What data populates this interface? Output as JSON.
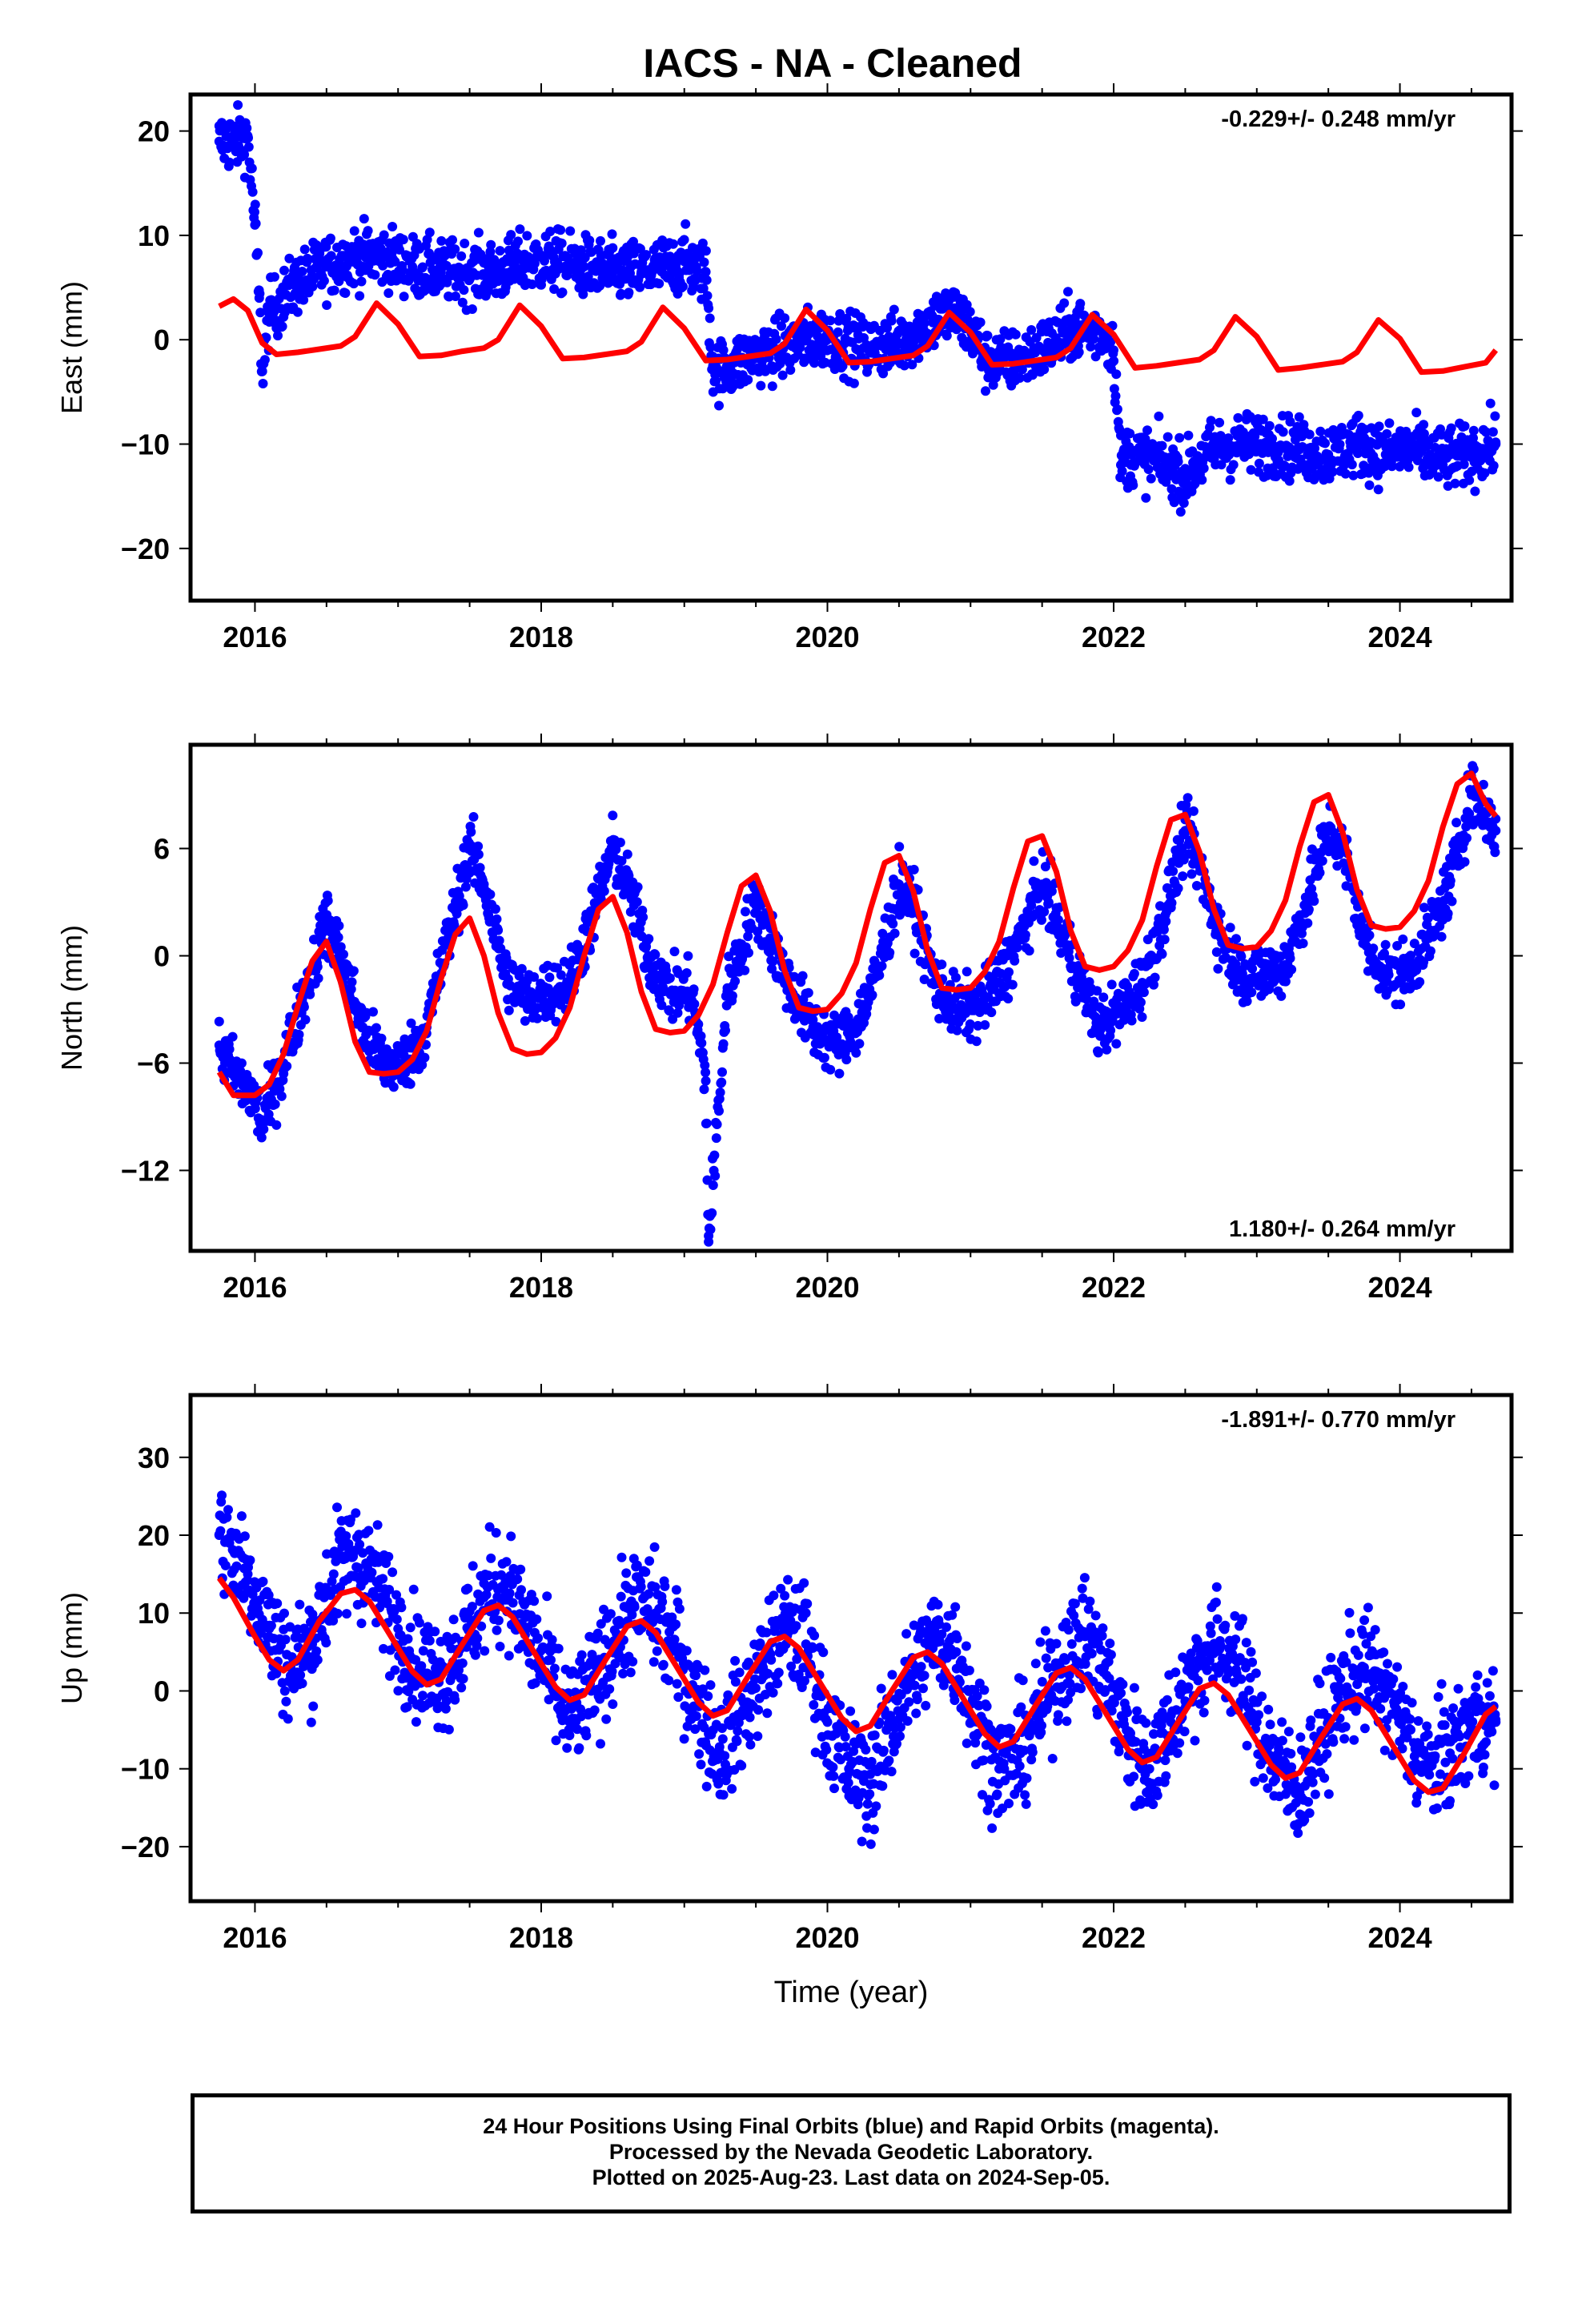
{
  "title": "IACS  - NA - Cleaned",
  "colors": {
    "final_orbits": "#0000ff",
    "model": "#ff0000",
    "frame": "#000000"
  },
  "chart_data": [
    {
      "type": "scatter",
      "ylabel": "East (mm)",
      "rate_label": "-0.229+/- 0.248 mm/yr",
      "xlim": [
        2015.55,
        2024.78
      ],
      "ylim": [
        -25,
        23.5
      ],
      "x_ticks": [
        2016,
        2018,
        2020,
        2022,
        2024
      ],
      "x_tick_labels": [
        "2016",
        "2018",
        "2020",
        "2022",
        "2024"
      ],
      "y_ticks": [
        -20,
        -10,
        0,
        10,
        20
      ],
      "y_tick_labels": [
        "−20",
        "−10",
        "0",
        "10",
        "20"
      ],
      "series": [
        {
          "role": "daily positions",
          "style": "points",
          "x": [
            2015.75,
            2015.85,
            2015.95,
            2016.0,
            2016.03,
            2016.05,
            2016.1,
            2016.3,
            2016.5,
            2016.7,
            2016.9,
            2017.1,
            2017.3,
            2017.5,
            2017.7,
            2017.9,
            2018.1,
            2018.3,
            2018.5,
            2018.7,
            2018.9,
            2019.0,
            2019.05,
            2019.15,
            2019.2,
            2019.25,
            2019.5,
            2019.75,
            2020.0,
            2020.25,
            2020.5,
            2020.75,
            2020.9,
            2021.05,
            2021.1,
            2021.3,
            2021.5,
            2021.7,
            2021.85,
            2021.95,
            2022.0,
            2022.05,
            2022.1,
            2022.3,
            2022.5,
            2022.7,
            2022.9,
            2023.1,
            2023.3,
            2023.5,
            2023.7,
            2023.9,
            2024.1,
            2024.3,
            2024.5,
            2024.67
          ],
          "y": [
            19,
            19,
            19.5,
            11,
            4,
            -3,
            2.5,
            5.5,
            7,
            8,
            8,
            7,
            6.5,
            6.5,
            6.5,
            7.5,
            7.5,
            7,
            6.5,
            6.5,
            7,
            7.5,
            7,
            6.5,
            -2.5,
            -3,
            -1.5,
            -0.5,
            0.3,
            -0.8,
            -0.3,
            2,
            2.5,
            0,
            -2,
            -2,
            -1,
            1,
            1,
            0.5,
            -1,
            -12,
            -11,
            -11.5,
            -13,
            -10.5,
            -10,
            -10,
            -10.5,
            -11,
            -10,
            -11,
            -10.5,
            -11.5,
            -11,
            -10
          ]
        },
        {
          "role": "seasonal model",
          "style": "line",
          "x": [
            2015.75,
            2015.85,
            2015.95,
            2016.05,
            2016.15,
            2016.3,
            2016.45,
            2016.6,
            2016.7,
            2016.85,
            2017.0,
            2017.15,
            2017.3,
            2017.45,
            2017.6,
            2017.7,
            2017.85,
            2018.0,
            2018.15,
            2018.3,
            2018.45,
            2018.6,
            2018.7,
            2018.85,
            2019.0,
            2019.15,
            2019.3,
            2019.45,
            2019.6,
            2019.7,
            2019.85,
            2020.0,
            2020.15,
            2020.3,
            2020.45,
            2020.6,
            2020.7,
            2020.85,
            2021.0,
            2021.15,
            2021.3,
            2021.45,
            2021.6,
            2021.7,
            2021.85,
            2022.0,
            2022.15,
            2022.3,
            2022.45,
            2022.6,
            2022.7,
            2022.85,
            2023.0,
            2023.15,
            2023.3,
            2023.45,
            2023.6,
            2023.7,
            2023.85,
            2024.0,
            2024.15,
            2024.3,
            2024.45,
            2024.6,
            2024.67
          ],
          "y": [
            3.2,
            3.9,
            2.8,
            -0.3,
            -1.4,
            -1.2,
            -0.9,
            -0.6,
            0.3,
            3.5,
            1.5,
            -1.6,
            -1.5,
            -1.1,
            -0.8,
            0,
            3.3,
            1.3,
            -1.8,
            -1.7,
            -1.4,
            -1.1,
            -0.2,
            3.1,
            1.1,
            -2.0,
            -1.9,
            -1.6,
            -1.3,
            -0.4,
            2.9,
            0.9,
            -2.2,
            -2.1,
            -1.8,
            -1.5,
            -0.6,
            2.6,
            0.7,
            -2.4,
            -2.3,
            -2.0,
            -1.7,
            -0.8,
            2.4,
            0.5,
            -2.7,
            -2.5,
            -2.2,
            -1.9,
            -1.0,
            2.2,
            0.3,
            -2.9,
            -2.7,
            -2.4,
            -2.1,
            -1.2,
            1.9,
            0.1,
            -3.1,
            -3.0,
            -2.6,
            -2.2,
            -1.0
          ]
        }
      ]
    },
    {
      "type": "scatter",
      "ylabel": "North (mm)",
      "rate_label": "1.180+/- 0.264 mm/yr",
      "xlim": [
        2015.55,
        2024.78
      ],
      "ylim": [
        -16.5,
        11.8
      ],
      "x_ticks": [
        2016,
        2018,
        2020,
        2022,
        2024
      ],
      "x_tick_labels": [
        "2016",
        "2018",
        "2020",
        "2022",
        "2024"
      ],
      "y_ticks": [
        -12,
        -6,
        0,
        6
      ],
      "y_tick_labels": [
        "−12",
        "−6",
        "0",
        "6"
      ],
      "series": [
        {
          "role": "daily positions",
          "style": "points",
          "x": [
            2015.75,
            2015.85,
            2016.0,
            2016.05,
            2016.2,
            2016.35,
            2016.5,
            2016.6,
            2016.75,
            2016.9,
            2017.05,
            2017.2,
            2017.35,
            2017.5,
            2017.6,
            2017.75,
            2017.9,
            2018.05,
            2018.2,
            2018.35,
            2018.5,
            2018.6,
            2018.75,
            2018.9,
            2019.05,
            2019.15,
            2019.17,
            2019.3,
            2019.5,
            2019.6,
            2019.75,
            2019.9,
            2020.05,
            2020.2,
            2020.35,
            2020.5,
            2020.6,
            2020.75,
            2020.9,
            2021.05,
            2021.2,
            2021.35,
            2021.5,
            2021.6,
            2021.75,
            2021.9,
            2022.05,
            2022.2,
            2022.35,
            2022.5,
            2022.6,
            2022.75,
            2022.9,
            2023.05,
            2023.2,
            2023.35,
            2023.5,
            2023.6,
            2023.75,
            2023.9,
            2024.05,
            2024.2,
            2024.35,
            2024.5,
            2024.6,
            2024.67
          ],
          "y": [
            -5,
            -6.5,
            -8,
            -9.5,
            -6,
            -2,
            2,
            0,
            -4,
            -6,
            -6,
            -4,
            1,
            6,
            4,
            -1,
            -2.5,
            -2,
            -1.5,
            2,
            6,
            4,
            0,
            -2,
            -2,
            -7,
            -16,
            -2,
            3,
            1,
            -2,
            -4,
            -5,
            -4,
            -1,
            4,
            3,
            -1.5,
            -3,
            -3,
            -1.5,
            1,
            4,
            2,
            -1,
            -4,
            -3,
            -1.5,
            2,
            7,
            5,
            1,
            -1,
            -1,
            -0.5,
            3,
            7,
            6,
            1,
            -1,
            -1,
            1,
            4,
            9,
            8,
            7
          ]
        },
        {
          "role": "seasonal model",
          "style": "line",
          "x": [
            2015.75,
            2015.85,
            2016.0,
            2016.1,
            2016.2,
            2016.3,
            2016.4,
            2016.5,
            2016.6,
            2016.7,
            2016.8,
            2016.9,
            2017.0,
            2017.1,
            2017.2,
            2017.3,
            2017.4,
            2017.5,
            2017.6,
            2017.7,
            2017.8,
            2017.9,
            2018.0,
            2018.1,
            2018.2,
            2018.3,
            2018.4,
            2018.5,
            2018.6,
            2018.7,
            2018.8,
            2018.9,
            2019.0,
            2019.1,
            2019.2,
            2019.3,
            2019.4,
            2019.5,
            2019.6,
            2019.7,
            2019.8,
            2019.9,
            2020.0,
            2020.1,
            2020.2,
            2020.3,
            2020.4,
            2020.5,
            2020.6,
            2020.7,
            2020.8,
            2020.9,
            2021.0,
            2021.1,
            2021.2,
            2021.3,
            2021.4,
            2021.5,
            2021.6,
            2021.7,
            2021.8,
            2021.9,
            2022.0,
            2022.1,
            2022.2,
            2022.3,
            2022.4,
            2022.5,
            2022.6,
            2022.7,
            2022.8,
            2022.9,
            2023.0,
            2023.1,
            2023.2,
            2023.3,
            2023.4,
            2023.5,
            2023.6,
            2023.7,
            2023.8,
            2023.9,
            2024.0,
            2024.1,
            2024.2,
            2024.3,
            2024.4,
            2024.5,
            2024.6,
            2024.67
          ],
          "y": [
            -6.5,
            -7.8,
            -7.8,
            -7.2,
            -5.5,
            -2.8,
            -0.3,
            0.8,
            -1.5,
            -4.8,
            -6.5,
            -6.6,
            -6.5,
            -5.8,
            -4.2,
            -1.3,
            1.2,
            2.1,
            0,
            -3.2,
            -5.2,
            -5.5,
            -5.4,
            -4.6,
            -2.9,
            0,
            2.6,
            3.3,
            1.3,
            -2,
            -4.1,
            -4.3,
            -4.2,
            -3.3,
            -1.6,
            1.3,
            3.9,
            4.5,
            2.5,
            -0.8,
            -2.9,
            -3.1,
            -3.0,
            -2.1,
            -0.4,
            2.6,
            5.2,
            5.6,
            3.6,
            0.3,
            -1.8,
            -1.9,
            -1.8,
            -0.9,
            0.8,
            3.8,
            6.4,
            6.7,
            4.7,
            1.4,
            -0.6,
            -0.8,
            -0.6,
            0.3,
            2,
            5,
            7.6,
            7.9,
            5.8,
            2.6,
            0.6,
            0.4,
            0.5,
            1.4,
            3.1,
            6.1,
            8.6,
            9.0,
            6.9,
            3.7,
            1.7,
            1.5,
            1.6,
            2.5,
            4.2,
            7.2,
            9.6,
            10.2,
            8.5,
            7.8
          ]
        }
      ]
    },
    {
      "type": "scatter",
      "ylabel": "Up (mm)",
      "rate_label": "-1.891+/- 0.770 mm/yr",
      "xlabel": "Time (year)",
      "xlim": [
        2015.55,
        2024.78
      ],
      "ylim": [
        -27,
        38
      ],
      "x_ticks": [
        2016,
        2018,
        2020,
        2022,
        2024
      ],
      "x_tick_labels": [
        "2016",
        "2018",
        "2020",
        "2022",
        "2024"
      ],
      "y_ticks": [
        -20,
        -10,
        0,
        10,
        20,
        30
      ],
      "y_tick_labels": [
        "−20",
        "−10",
        "0",
        "10",
        "20",
        "30"
      ],
      "series": [
        {
          "role": "daily positions",
          "style": "points",
          "x": [
            2015.75,
            2015.85,
            2015.95,
            2016.1,
            2016.25,
            2016.4,
            2016.55,
            2016.7,
            2016.85,
            2017.0,
            2017.15,
            2017.3,
            2017.45,
            2017.6,
            2017.75,
            2017.9,
            2018.05,
            2018.2,
            2018.35,
            2018.5,
            2018.65,
            2018.8,
            2018.95,
            2019.1,
            2019.25,
            2019.4,
            2019.55,
            2019.7,
            2019.85,
            2020.0,
            2020.15,
            2020.3,
            2020.45,
            2020.6,
            2020.75,
            2020.9,
            2021.05,
            2021.2,
            2021.35,
            2021.5,
            2021.65,
            2021.8,
            2021.95,
            2022.1,
            2022.25,
            2022.4,
            2022.55,
            2022.7,
            2022.85,
            2023.0,
            2023.15,
            2023.3,
            2023.45,
            2023.6,
            2023.75,
            2023.9,
            2024.05,
            2024.2,
            2024.35,
            2024.5,
            2024.67
          ],
          "y": [
            20,
            18,
            15,
            8,
            3,
            6,
            15,
            18,
            14,
            8,
            3,
            2,
            6,
            12,
            14,
            8,
            2,
            -4,
            0,
            6,
            11,
            10,
            5,
            -2,
            -8,
            -3,
            3,
            8,
            6,
            -4,
            -10,
            -12,
            -4,
            2,
            7,
            5,
            -4,
            -10,
            -8,
            -2,
            4,
            7,
            2,
            -6,
            -10,
            -4,
            2,
            6,
            4,
            -4,
            -10,
            -13,
            -6,
            0,
            3,
            0,
            -6,
            -10,
            -8,
            -4,
            -4
          ]
        },
        {
          "role": "seasonal model",
          "style": "line",
          "x": [
            2015.75,
            2015.85,
            2016.0,
            2016.1,
            2016.2,
            2016.3,
            2016.45,
            2016.6,
            2016.7,
            2016.8,
            2016.95,
            2017.1,
            2017.2,
            2017.3,
            2017.45,
            2017.6,
            2017.7,
            2017.8,
            2017.95,
            2018.1,
            2018.2,
            2018.3,
            2018.45,
            2018.6,
            2018.7,
            2018.8,
            2018.95,
            2019.1,
            2019.2,
            2019.3,
            2019.45,
            2019.6,
            2019.7,
            2019.8,
            2019.95,
            2020.1,
            2020.2,
            2020.3,
            2020.45,
            2020.6,
            2020.7,
            2020.8,
            2020.95,
            2021.1,
            2021.2,
            2021.3,
            2021.45,
            2021.6,
            2021.7,
            2021.8,
            2021.95,
            2022.1,
            2022.2,
            2022.3,
            2022.45,
            2022.6,
            2022.7,
            2022.8,
            2022.95,
            2023.1,
            2023.2,
            2023.3,
            2023.45,
            2023.6,
            2023.7,
            2023.8,
            2023.95,
            2024.1,
            2024.2,
            2024.3,
            2024.45,
            2024.6,
            2024.67
          ],
          "y": [
            14.5,
            12,
            7,
            4,
            2.6,
            4,
            9,
            12.5,
            13,
            11.5,
            7,
            2.5,
            0.8,
            1.5,
            6,
            10.3,
            11,
            9.5,
            5,
            0.5,
            -1.2,
            -0.5,
            4,
            8.3,
            9,
            7.5,
            3,
            -1.5,
            -3.2,
            -2.5,
            2,
            6.3,
            7,
            5.5,
            1,
            -3.5,
            -5.2,
            -4.5,
            0,
            4.3,
            5,
            3.5,
            -1,
            -5.5,
            -7.2,
            -6.5,
            -2,
            2.3,
            3,
            1.5,
            -3,
            -7.5,
            -9.2,
            -8.5,
            -4,
            0.3,
            1,
            -0.5,
            -5,
            -9.5,
            -11.2,
            -10.5,
            -6,
            -1.7,
            -1,
            -2.5,
            -7,
            -11.5,
            -13,
            -12.5,
            -8,
            -3,
            -2
          ]
        }
      ]
    }
  ],
  "footer": {
    "line1": "24 Hour Positions Using Final Orbits (blue) and Rapid Orbits (magenta).",
    "line2": "Processed by the Nevada Geodetic Laboratory.",
    "line3": "Plotted on 2025-Aug-23. Last data on 2024-Sep-05."
  }
}
